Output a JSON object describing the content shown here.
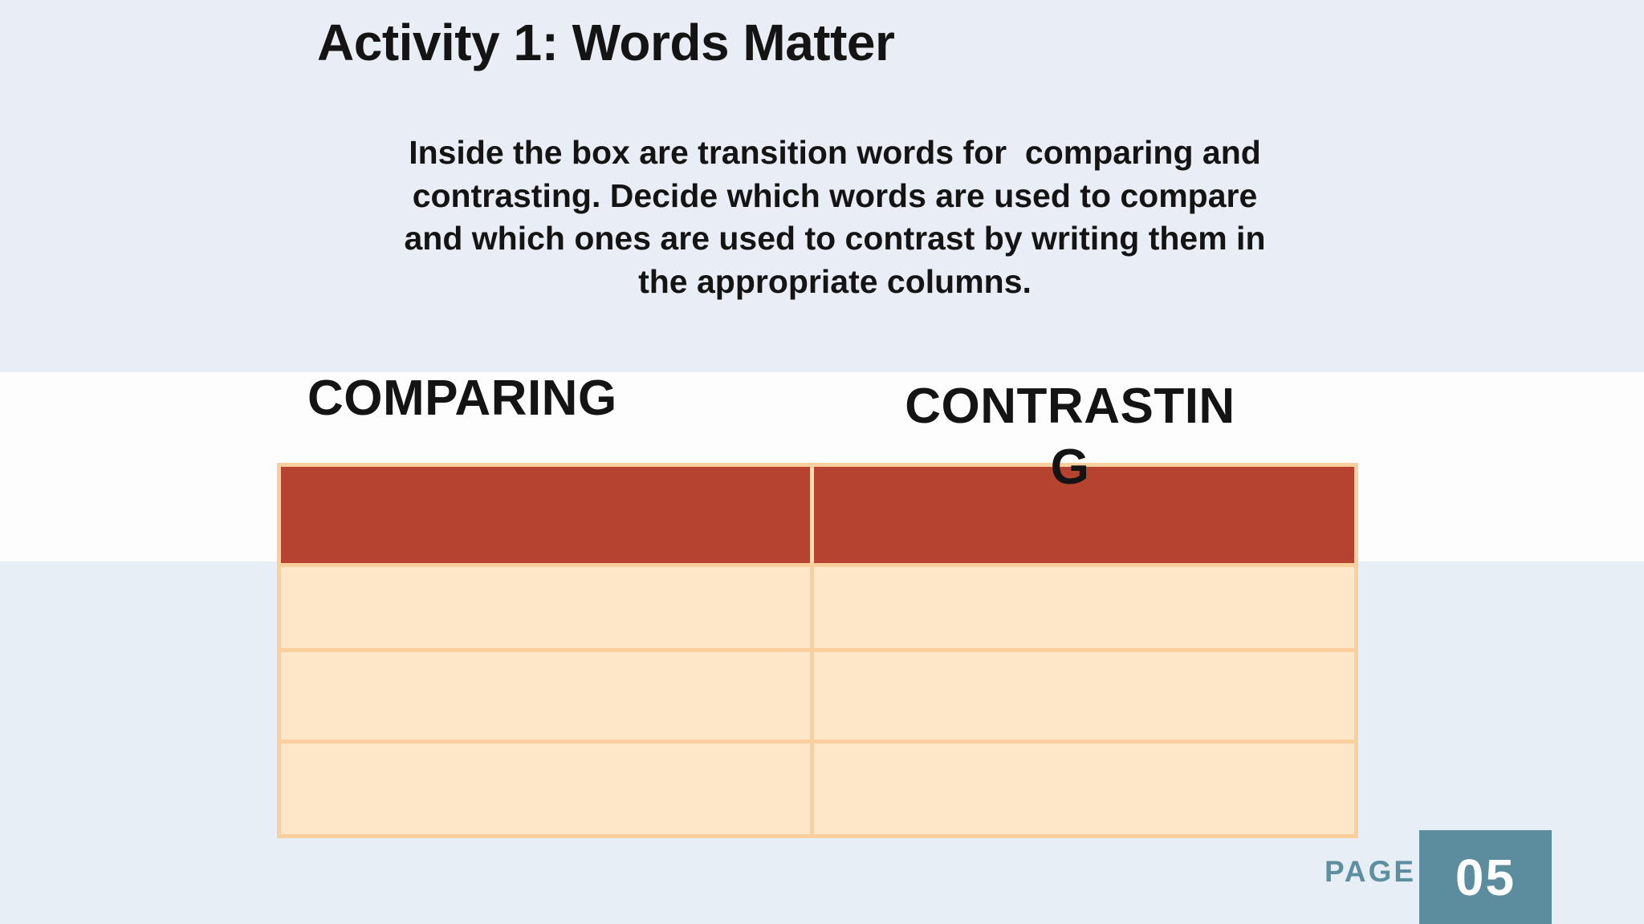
{
  "page": {
    "title": "Activity 1: Words Matter",
    "instructions": "Inside the box are transition words for  comparing and\ncontrasting. Decide which words are used to compare\nand which ones are used to contrast by writing them in\nthe appropriate columns.",
    "footer": {
      "page_label": "PAGE",
      "page_number": "05"
    }
  },
  "table": {
    "columns": [
      {
        "label": "COMPARING",
        "label_wrapped": "COMPARING"
      },
      {
        "label": "CONTRASTING",
        "label_wrapped": "CONTRASTIN\nG"
      }
    ],
    "rows": [
      [
        "",
        ""
      ],
      [
        "",
        ""
      ],
      [
        "",
        ""
      ]
    ]
  },
  "theme": {
    "colors": {
      "bg-top": "#e9edf5",
      "bg-band": "#fdfdfe",
      "bg-bottom": "#e8eef5",
      "table-red": "#b64330",
      "table-cream": "#fde7c8",
      "table-border": "#f8cf9d",
      "header-divider": "#fbdfb0",
      "teal": "#5b8d9e",
      "teal-text": "#5d8fa0",
      "text": "#141414"
    }
  }
}
